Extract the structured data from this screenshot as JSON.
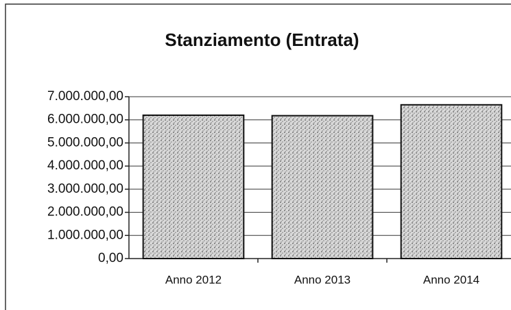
{
  "chart_data": {
    "type": "bar",
    "title": "Stanziamento (Entrata)",
    "categories": [
      "Anno 2012",
      "Anno 2013",
      "Anno 2014"
    ],
    "values": [
      6200000,
      6180000,
      6650000
    ],
    "color": "#b8b8b8",
    "ylim": [
      0,
      7000000
    ],
    "yticks": [
      {
        "value": 0,
        "label": "0,00"
      },
      {
        "value": 1000000,
        "label": "1.000.000,00"
      },
      {
        "value": 2000000,
        "label": "2.000.000,00"
      },
      {
        "value": 3000000,
        "label": "3.000.000,00"
      },
      {
        "value": 4000000,
        "label": "4.000.000,00"
      },
      {
        "value": 5000000,
        "label": "5.000.000,00"
      },
      {
        "value": 6000000,
        "label": "6.000.000,00"
      },
      {
        "value": 7000000,
        "label": "7.000.000,00"
      }
    ],
    "grid": true
  }
}
